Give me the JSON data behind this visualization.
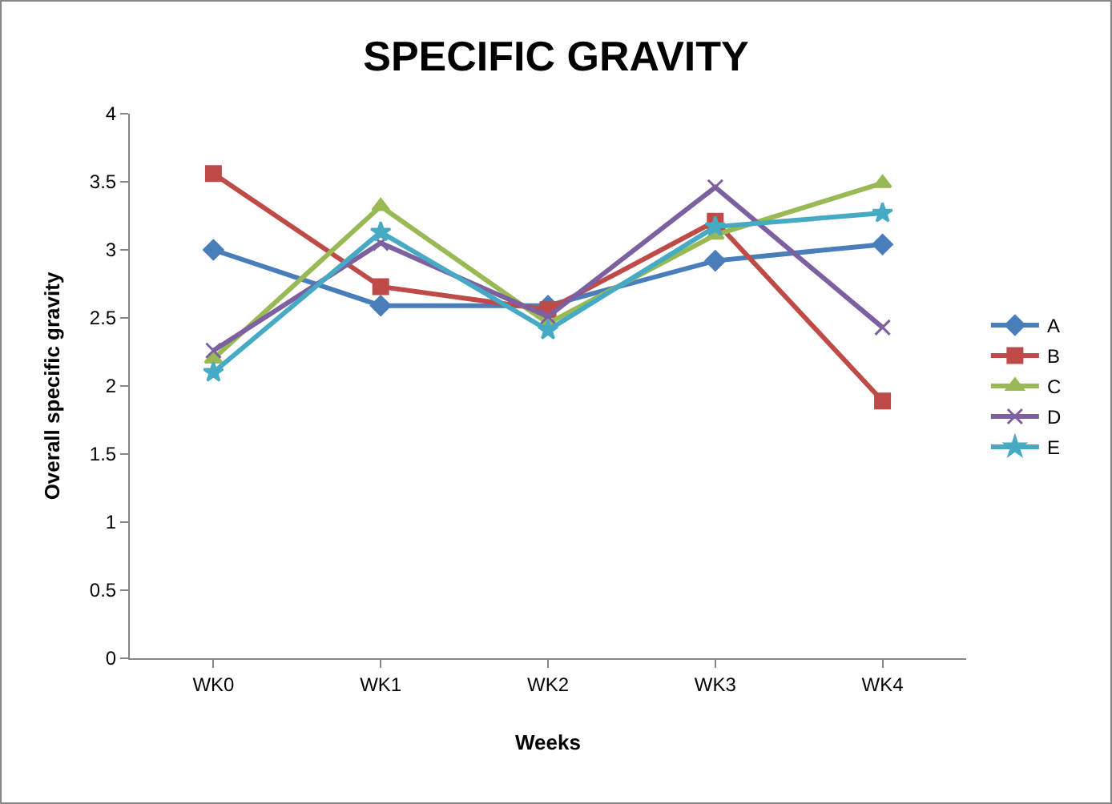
{
  "chart_data": {
    "type": "line",
    "title": "SPECIFIC GRAVITY",
    "xlabel": "Weeks",
    "ylabel": "Overall specific gravity",
    "categories": [
      "WK0",
      "WK1",
      "WK2",
      "WK3",
      "WK4"
    ],
    "series": [
      {
        "name": "A",
        "color": "#4a7ebb",
        "marker": "diamond",
        "values": [
          3.0,
          2.59,
          2.59,
          2.92,
          3.04
        ]
      },
      {
        "name": "B",
        "color": "#be4b48",
        "marker": "square",
        "values": [
          3.56,
          2.73,
          2.56,
          3.21,
          1.89
        ]
      },
      {
        "name": "C",
        "color": "#98b954",
        "marker": "triangle",
        "values": [
          2.2,
          3.32,
          2.46,
          3.11,
          3.49
        ]
      },
      {
        "name": "D",
        "color": "#7d60a0",
        "marker": "cross",
        "values": [
          2.26,
          3.05,
          2.51,
          3.46,
          2.43
        ]
      },
      {
        "name": "E",
        "color": "#46aac5",
        "marker": "star",
        "values": [
          2.1,
          3.13,
          2.41,
          3.17,
          3.27
        ]
      }
    ],
    "ylim": [
      0,
      4
    ],
    "yticks": [
      0,
      0.5,
      1,
      1.5,
      2,
      2.5,
      3,
      3.5,
      4
    ],
    "grid": false,
    "legend": "right",
    "line_style": "solid"
  }
}
